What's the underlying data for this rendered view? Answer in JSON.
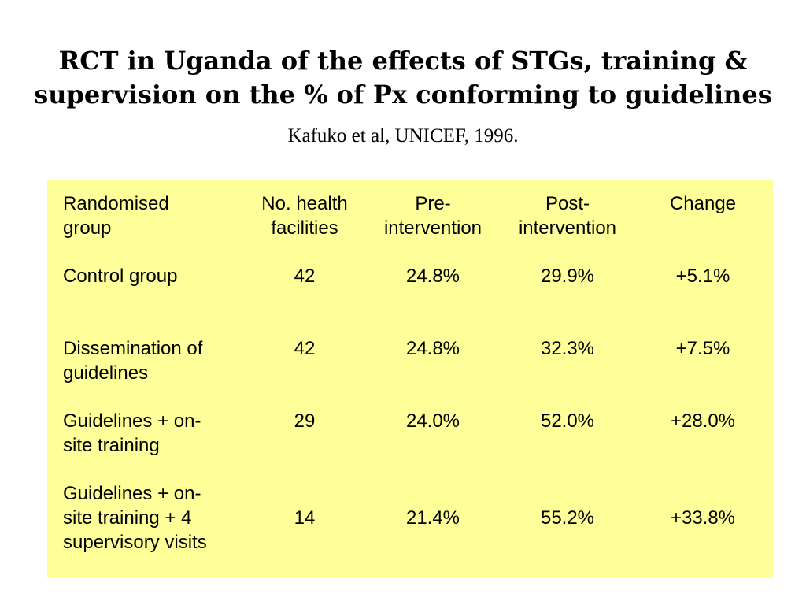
{
  "slide": {
    "title_line1": "RCT in Uganda of the effects of STGs, training &",
    "title_line2": "supervision on the % of Px conforming to guidelines",
    "subtitle": "Kafuko et al, UNICEF, 1996."
  },
  "table": {
    "headers": [
      "Randomised\ngroup",
      "No. health\nfacilities",
      "Pre-\nintervention",
      "Post-\nintervention",
      "Change"
    ],
    "rows": [
      [
        "Control group",
        "42",
        "24.8%",
        "29.9%",
        "+5.1%"
      ],
      [
        "Dissemination of\nguidelines",
        "42",
        "24.8%",
        "32.3%",
        "+7.5%"
      ],
      [
        "Guidelines + on-\nsite training",
        "29",
        "24.0%",
        "52.0%",
        "+28.0%"
      ],
      [
        "Guidelines + on-\nsite training + 4\nsupervisory visits",
        "14",
        "21.4%",
        "55.2%",
        "+33.8%"
      ]
    ],
    "background_color": "#ffff99"
  }
}
